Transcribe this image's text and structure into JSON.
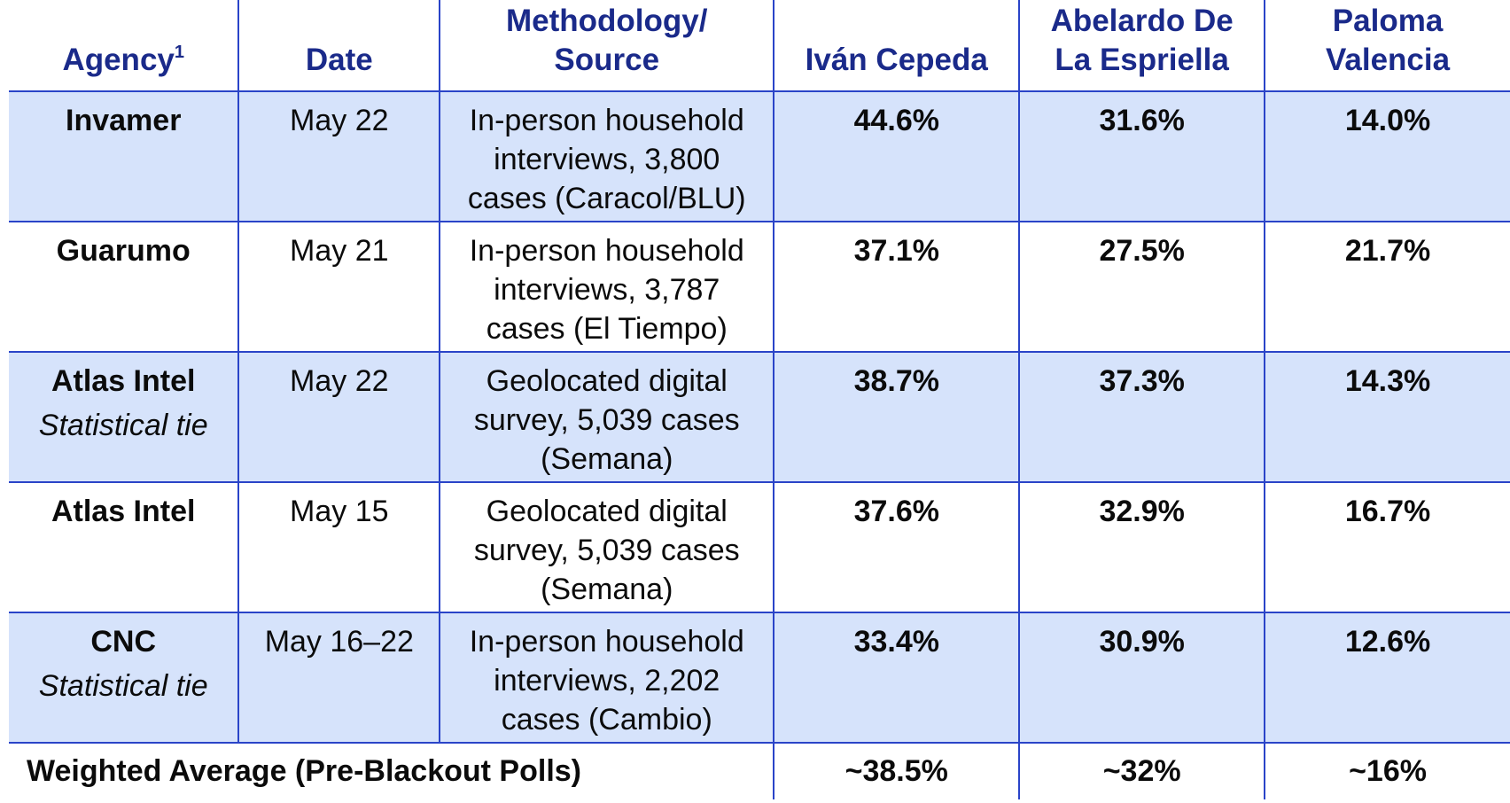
{
  "table": {
    "headers": {
      "agency": "Agency",
      "agency_sup": "1",
      "date": "Date",
      "method_line1": "Methodology/",
      "method_line2": "Source",
      "cand1": "Iván Cepeda",
      "cand2_line1": "Abelardo De",
      "cand2_line2": "La Espriella",
      "cand3_line1": "Paloma",
      "cand3_line2": "Valencia"
    },
    "rows": [
      {
        "agency": "Invamer",
        "note": "",
        "date": "May 22",
        "method": "In-person household interviews, 3,800 cases (Caracol/BLU)",
        "cepeda": "44.6%",
        "espriella": "31.6%",
        "valencia": "14.0%"
      },
      {
        "agency": "Guarumo",
        "note": "",
        "date": "May 21",
        "method": "In-person household interviews, 3,787 cases (El Tiempo)",
        "cepeda": "37.1%",
        "espriella": "27.5%",
        "valencia": "21.7%"
      },
      {
        "agency": "Atlas Intel",
        "note": "Statistical tie",
        "date": "May 22",
        "method": "Geolocated digital survey, 5,039 cases (Semana)",
        "cepeda": "38.7%",
        "espriella": "37.3%",
        "valencia": "14.3%"
      },
      {
        "agency": "Atlas Intel",
        "note": "",
        "date": "May 15",
        "method": "Geolocated digital survey, 5,039 cases (Semana)",
        "cepeda": "37.6%",
        "espriella": "32.9%",
        "valencia": "16.7%"
      },
      {
        "agency": "CNC",
        "note": "Statistical tie",
        "date": "May 16–22",
        "method": "In-person household interviews, 2,202 cases (Cambio)",
        "cepeda": "33.4%",
        "espriella": "30.9%",
        "valencia": "12.6%"
      }
    ],
    "average": {
      "label": "Weighted Average (Pre-Blackout Polls)",
      "cepeda": "~38.5%",
      "espriella": "~32%",
      "valencia": "~16%"
    }
  },
  "colors": {
    "header_text": "#1a2a8a",
    "border": "#2a44c8",
    "shaded_row": "#d6e3fb"
  }
}
